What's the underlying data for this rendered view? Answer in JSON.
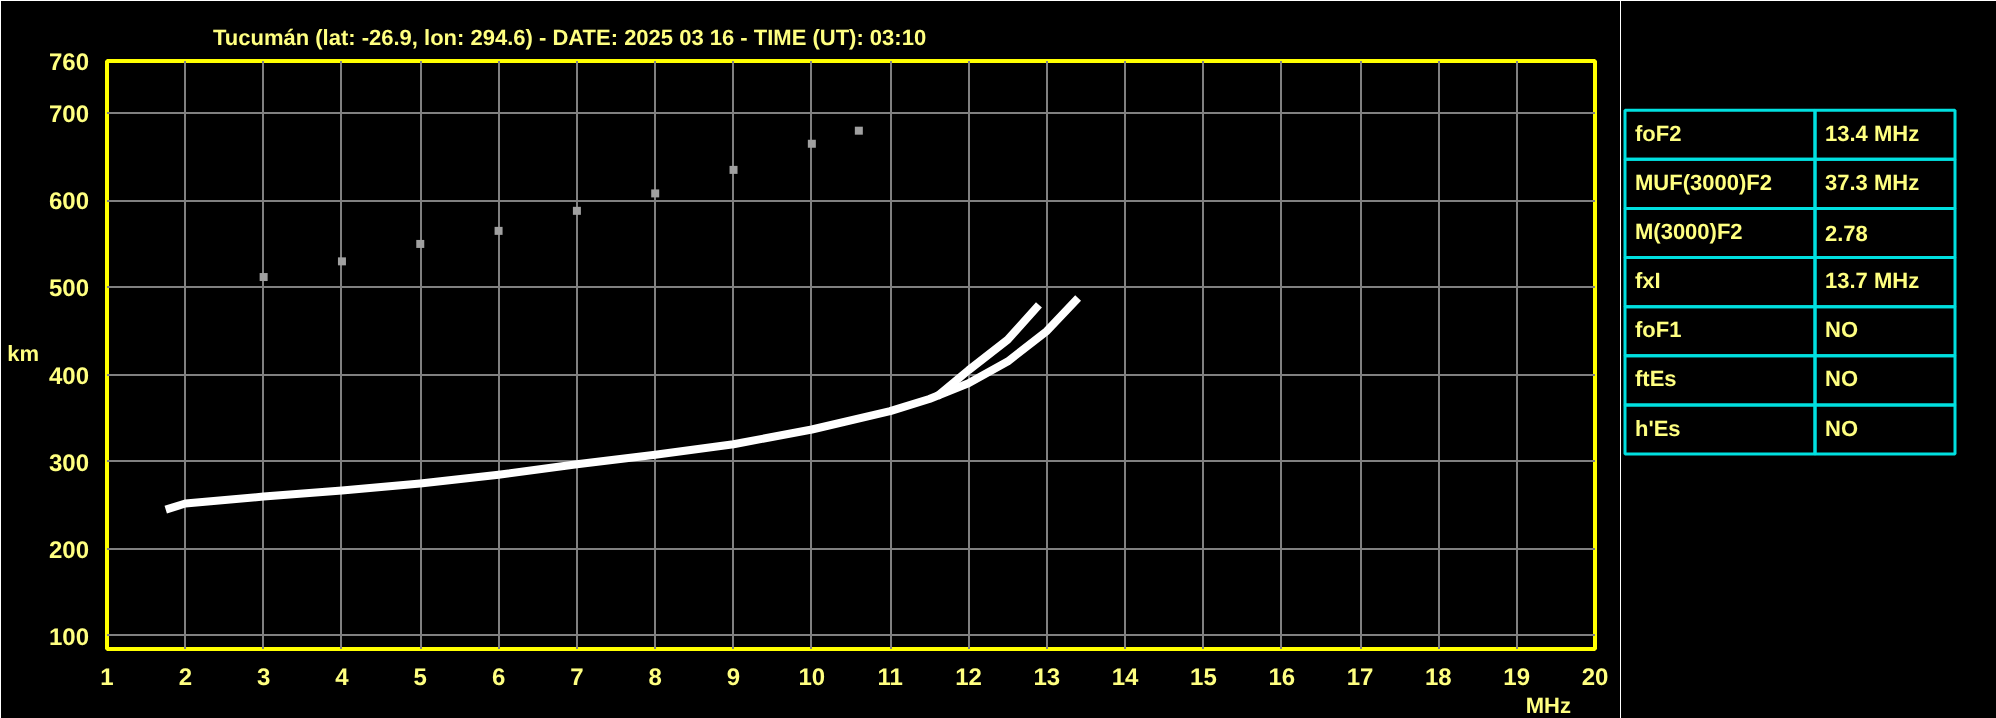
{
  "chart_data": [
    {
      "type": "line",
      "title": "Tucumán (lat: -26.9, lon: 294.6) - DATE: 2025 03 16 - TIME (UT): 03:10",
      "xlabel": "MHz",
      "ylabel": "km",
      "xlim": [
        1,
        20
      ],
      "ylim": [
        85,
        760
      ],
      "xticks": [
        1,
        2,
        3,
        4,
        5,
        6,
        7,
        8,
        9,
        10,
        11,
        12,
        13,
        14,
        15,
        16,
        17,
        18,
        19,
        20
      ],
      "yticks": [
        100,
        200,
        300,
        400,
        500,
        600,
        700,
        760
      ],
      "grid": true,
      "series": [
        {
          "color": "#ffffff",
          "x": [
            1.75,
            2,
            3,
            4,
            5,
            6,
            7,
            8,
            9,
            10,
            11,
            11.5,
            12,
            12.5,
            13,
            13.4
          ],
          "values": [
            245,
            252,
            260,
            267,
            275,
            285,
            297,
            308,
            320,
            337,
            358,
            372,
            390,
            415,
            450,
            488
          ]
        },
        {
          "color": "#ffffff",
          "x": [
            11.6,
            12,
            12.5,
            12.9
          ],
          "values": [
            375,
            405,
            440,
            480
          ]
        },
        {
          "type": "scatter",
          "marker": "square",
          "color": "#a0a0a0",
          "x": [
            3,
            4,
            5,
            6,
            7,
            8,
            9,
            10,
            10.6
          ],
          "values": [
            512,
            530,
            550,
            565,
            588,
            608,
            635,
            665,
            680
          ]
        }
      ]
    },
    {
      "type": "other",
      "annotations": [
        "foF2",
        "13.4 MHz",
        "MUF(3000)F2",
        "37.3 MHz",
        "M(3000)F2",
        "2.78",
        "fxI",
        "13.7 MHz",
        "foF1",
        "NO",
        "ftEs",
        "NO",
        "h'Es",
        "NO"
      ]
    }
  ]
}
